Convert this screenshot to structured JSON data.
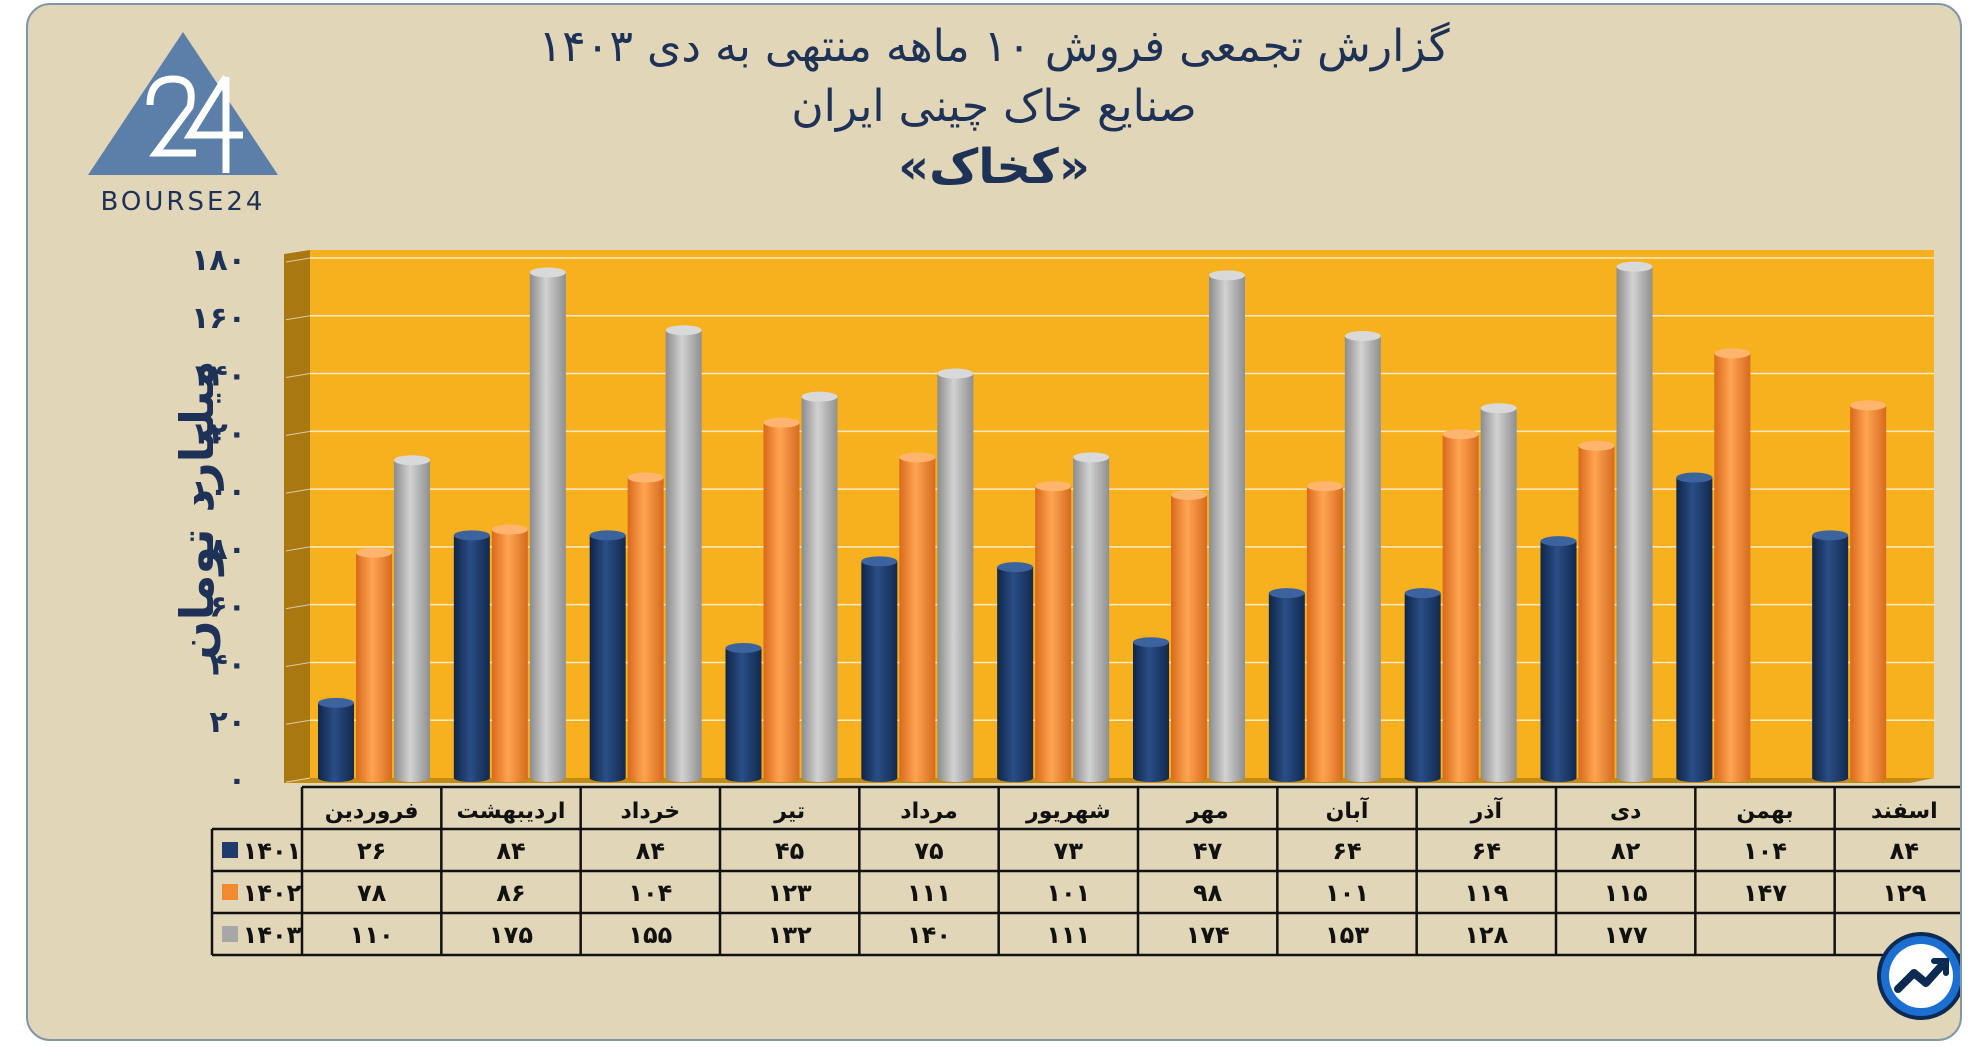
{
  "header": {
    "title_line1": "گزارش تجمعی فروش ۱۰ ماهه منتهی به دی ۱۴۰۳",
    "title_line2": "صنایع خاک چینی ایران",
    "title_line3": "«کخاک»"
  },
  "logo": {
    "icon": "bourse24-triangle-logo",
    "text": "BOURSE24"
  },
  "floating_icon": "trend-chart-icon",
  "colors": {
    "background": "#e2d6b8",
    "plot_area": "#f7b01e",
    "series_1401": "#1f3c6a",
    "series_1402": "#f28a30",
    "series_1403": "#a7a7a7",
    "text": "#1e3258"
  },
  "chart_data": {
    "type": "bar",
    "ylabel": "میلیارد تومان",
    "ylim": [
      0,
      180
    ],
    "yticks": [
      "۰",
      "۲۰",
      "۴۰",
      "۶۰",
      "۸۰",
      "۱۰۰",
      "۱۲۰",
      "۱۴۰",
      "۱۶۰",
      "۱۸۰"
    ],
    "categories": [
      "فروردین",
      "اردیبهشت",
      "خرداد",
      "تیر",
      "مرداد",
      "شهریور",
      "مهر",
      "آبان",
      "آذر",
      "دی",
      "بهمن",
      "اسفند"
    ],
    "series": [
      {
        "name": "۱۴۰۱",
        "values": [
          26,
          84,
          84,
          45,
          75,
          73,
          47,
          64,
          64,
          82,
          104,
          84
        ],
        "labels": [
          "۲۶",
          "۸۴",
          "۸۴",
          "۴۵",
          "۷۵",
          "۷۳",
          "۴۷",
          "۶۴",
          "۶۴",
          "۸۲",
          "۱۰۴",
          "۸۴"
        ]
      },
      {
        "name": "۱۴۰۲",
        "values": [
          78,
          86,
          104,
          123,
          111,
          101,
          98,
          101,
          119,
          115,
          147,
          129
        ],
        "labels": [
          "۷۸",
          "۸۶",
          "۱۰۴",
          "۱۲۳",
          "۱۱۱",
          "۱۰۱",
          "۹۸",
          "۱۰۱",
          "۱۱۹",
          "۱۱۵",
          "۱۴۷",
          "۱۲۹"
        ]
      },
      {
        "name": "۱۴۰۳",
        "values": [
          110,
          175,
          155,
          132,
          140,
          111,
          174,
          153,
          128,
          177,
          null,
          null
        ],
        "labels": [
          "۱۱۰",
          "۱۷۵",
          "۱۵۵",
          "۱۳۲",
          "۱۴۰",
          "۱۱۱",
          "۱۷۴",
          "۱۵۳",
          "۱۲۸",
          "۱۷۷",
          "",
          ""
        ]
      }
    ],
    "grid": true,
    "legend": "data-table"
  }
}
